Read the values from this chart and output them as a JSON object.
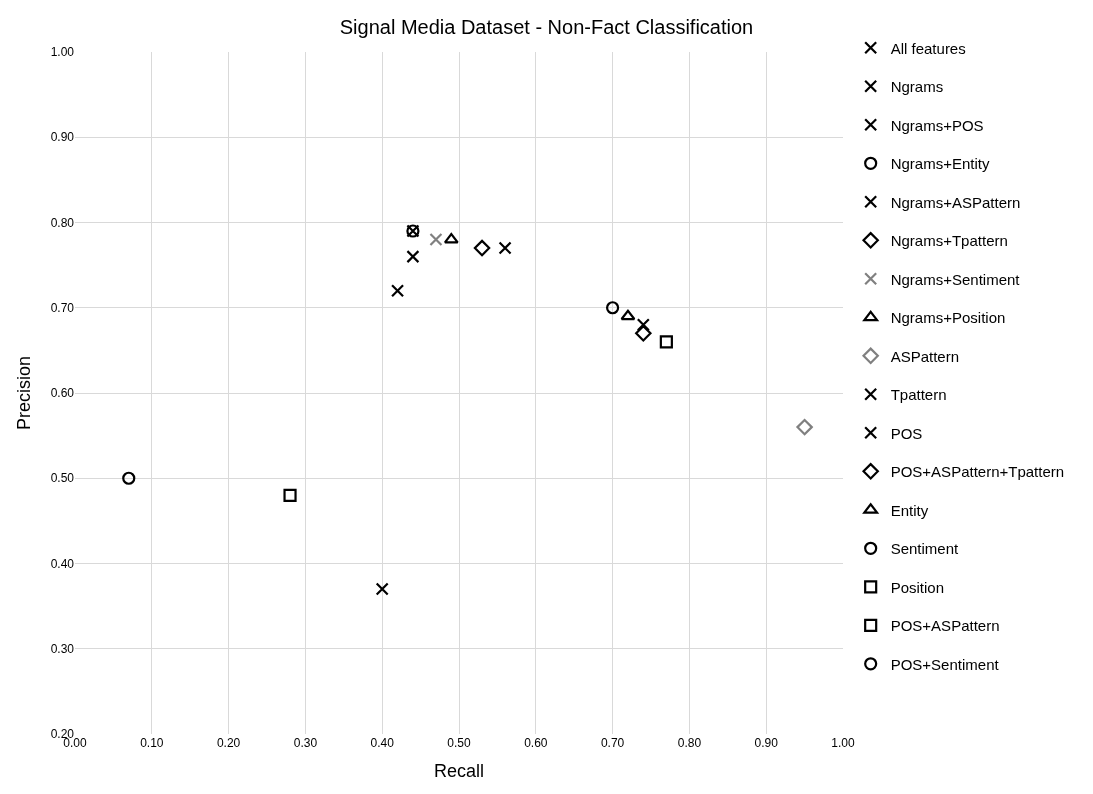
{
  "chart_data": {
    "type": "scatter",
    "title": "Signal Media Dataset - Non-Fact Classification",
    "xlabel": "Recall",
    "ylabel": "Precision",
    "xlim": [
      0,
      1
    ],
    "ylim": [
      0.2,
      1
    ],
    "xticks": [
      {
        "value": 0,
        "label": "0.00"
      },
      {
        "value": 0.1,
        "label": "0.10"
      },
      {
        "value": 0.2,
        "label": "0.20"
      },
      {
        "value": 0.3,
        "label": "0.30"
      },
      {
        "value": 0.4,
        "label": "0.40"
      },
      {
        "value": 0.5,
        "label": "0.50"
      },
      {
        "value": 0.6,
        "label": "0.60"
      },
      {
        "value": 0.7,
        "label": "0.70"
      },
      {
        "value": 0.8,
        "label": "0.80"
      },
      {
        "value": 0.9,
        "label": "0.90"
      },
      {
        "value": 1,
        "label": "1.00"
      }
    ],
    "yticks": [
      {
        "value": 0.2,
        "label": "0.20"
      },
      {
        "value": 0.3,
        "label": "0.30"
      },
      {
        "value": 0.4,
        "label": "0.40"
      },
      {
        "value": 0.5,
        "label": "0.50"
      },
      {
        "value": 0.6,
        "label": "0.60"
      },
      {
        "value": 0.7,
        "label": "0.70"
      },
      {
        "value": 0.8,
        "label": "0.80"
      },
      {
        "value": 0.9,
        "label": "0.90"
      },
      {
        "value": 1,
        "label": "1.00"
      }
    ],
    "grid": true,
    "legend": "right",
    "series": [
      {
        "name": "All features",
        "color": "#000000",
        "marker": "cross",
        "x": [
          0.56
        ],
        "values": [
          0.77
        ]
      },
      {
        "name": "Ngrams",
        "color": "#000000",
        "marker": "cross",
        "x": [
          0.42
        ],
        "values": [
          0.72
        ]
      },
      {
        "name": "Ngrams+POS",
        "color": "#000000",
        "marker": "cross",
        "x": [
          0.44
        ],
        "values": [
          0.79
        ]
      },
      {
        "name": "Ngrams+Entity",
        "color": "#000000",
        "marker": "circle",
        "x": [
          0.44
        ],
        "values": [
          0.79
        ]
      },
      {
        "name": "Ngrams+ASPattern",
        "color": "#000000",
        "marker": "cross",
        "x": [
          0.44
        ],
        "values": [
          0.76
        ]
      },
      {
        "name": "Ngrams+Tpattern",
        "color": "#000000",
        "marker": "diamond",
        "x": [
          0.53
        ],
        "values": [
          0.77
        ]
      },
      {
        "name": "Ngrams+Sentiment",
        "color": "#808080",
        "marker": "cross",
        "x": [
          0.47
        ],
        "values": [
          0.78
        ]
      },
      {
        "name": "Ngrams+Position",
        "color": "#000000",
        "marker": "triangle",
        "x": [
          0.49
        ],
        "values": [
          0.78
        ]
      },
      {
        "name": "ASPattern",
        "color": "#808080",
        "marker": "diamond",
        "x": [
          0.95
        ],
        "values": [
          0.56
        ]
      },
      {
        "name": "Tpattern",
        "color": "#000000",
        "marker": "cross",
        "x": [
          0.4
        ],
        "values": [
          0.37
        ]
      },
      {
        "name": "POS",
        "color": "#000000",
        "marker": "cross",
        "x": [
          0.74
        ],
        "values": [
          0.68
        ]
      },
      {
        "name": "POS+ASPattern+Tpattern",
        "color": "#000000",
        "marker": "diamond",
        "x": [
          0.74
        ],
        "values": [
          0.67
        ]
      },
      {
        "name": "Entity",
        "color": "#000000",
        "marker": "triangle",
        "x": [
          0.72
        ],
        "values": [
          0.69
        ]
      },
      {
        "name": "Sentiment",
        "color": "#000000",
        "marker": "circle",
        "x": [
          0.07
        ],
        "values": [
          0.5
        ]
      },
      {
        "name": "Position",
        "color": "#000000",
        "marker": "square",
        "x": [
          0.28
        ],
        "values": [
          0.48
        ]
      },
      {
        "name": "POS+ASPattern",
        "color": "#000000",
        "marker": "square",
        "x": [
          0.77
        ],
        "values": [
          0.66
        ]
      },
      {
        "name": "POS+Sentiment",
        "color": "#000000",
        "marker": "circle",
        "x": [
          0.7
        ],
        "values": [
          0.7
        ]
      }
    ]
  }
}
